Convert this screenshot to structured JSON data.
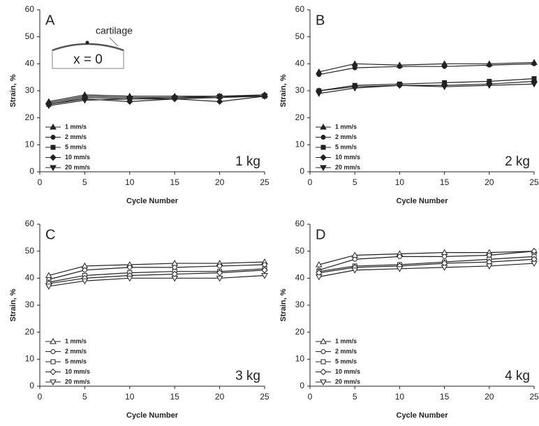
{
  "chart_data": [
    {
      "type": "line",
      "panel": "A",
      "load": "1 kg",
      "xlabel": "Cycle Number",
      "ylabel": "Strain, %",
      "x": [
        1,
        5,
        10,
        15,
        20,
        25
      ],
      "xlim": [
        0,
        25
      ],
      "xticks": [
        0,
        5,
        10,
        15,
        20,
        25
      ],
      "ylim": [
        0,
        60
      ],
      "yticks": [
        0,
        10,
        20,
        30,
        40,
        50,
        60
      ],
      "markers_filled": true,
      "color": "#222",
      "inset": {
        "label": "cartilage",
        "text": "x = 0"
      },
      "series": [
        {
          "name": "1 mm/s",
          "marker": "triangle-up",
          "values": [
            26,
            28.5,
            28,
            28,
            28,
            28.5
          ]
        },
        {
          "name": "2 mm/s",
          "marker": "circle",
          "values": [
            25.5,
            28,
            27.5,
            27.5,
            27.5,
            28.5
          ]
        },
        {
          "name": "5 mm/s",
          "marker": "square",
          "values": [
            25,
            27.5,
            27,
            27.5,
            28,
            28
          ]
        },
        {
          "name": "10 mm/s",
          "marker": "diamond",
          "values": [
            25,
            27,
            26,
            27,
            26,
            28
          ]
        },
        {
          "name": "20 mm/s",
          "marker": "triangle-down",
          "values": [
            24.5,
            26.5,
            27,
            27,
            27.5,
            28
          ]
        }
      ]
    },
    {
      "type": "line",
      "panel": "B",
      "load": "2 kg",
      "xlabel": "Cycle Number",
      "ylabel": "Strain, %",
      "x": [
        1,
        5,
        10,
        15,
        20,
        25
      ],
      "xlim": [
        0,
        25
      ],
      "xticks": [
        0,
        5,
        10,
        15,
        20,
        25
      ],
      "ylim": [
        0,
        60
      ],
      "yticks": [
        0,
        10,
        20,
        30,
        40,
        50,
        60
      ],
      "markers_filled": true,
      "color": "#222",
      "series": [
        {
          "name": "1 mm/s",
          "marker": "triangle-up",
          "values": [
            37,
            40,
            39.5,
            40,
            40,
            40.5
          ]
        },
        {
          "name": "2 mm/s",
          "marker": "circle",
          "values": [
            36,
            38.5,
            39,
            39,
            39.5,
            40
          ]
        },
        {
          "name": "5 mm/s",
          "marker": "square",
          "values": [
            30,
            32,
            32.5,
            33,
            33.5,
            34.5
          ]
        },
        {
          "name": "10 mm/s",
          "marker": "diamond",
          "values": [
            30,
            31.5,
            32,
            32,
            32.5,
            33.5
          ]
        },
        {
          "name": "20 mm/s",
          "marker": "triangle-down",
          "values": [
            29,
            31,
            32,
            31.5,
            32,
            32.5
          ]
        }
      ]
    },
    {
      "type": "line",
      "panel": "C",
      "load": "3 kg",
      "xlabel": "Cycle Number",
      "ylabel": "Strain, %",
      "x": [
        1,
        5,
        10,
        15,
        20,
        25
      ],
      "xlim": [
        0,
        25
      ],
      "xticks": [
        0,
        5,
        10,
        15,
        20,
        25
      ],
      "ylim": [
        0,
        60
      ],
      "yticks": [
        0,
        10,
        20,
        30,
        40,
        50,
        60
      ],
      "markers_filled": false,
      "color": "#222",
      "series": [
        {
          "name": "1 mm/s",
          "marker": "triangle-up",
          "values": [
            41,
            44.5,
            45,
            45.5,
            45.5,
            46
          ]
        },
        {
          "name": "2 mm/s",
          "marker": "circle",
          "values": [
            39.5,
            43,
            44,
            44,
            44.5,
            45
          ]
        },
        {
          "name": "5 mm/s",
          "marker": "square",
          "values": [
            38.5,
            41,
            42,
            42.5,
            42.5,
            43.5
          ]
        },
        {
          "name": "10 mm/s",
          "marker": "diamond",
          "values": [
            38,
            40,
            41,
            41.5,
            42,
            43
          ]
        },
        {
          "name": "20 mm/s",
          "marker": "triangle-down",
          "values": [
            37,
            39,
            40,
            40,
            40,
            41
          ]
        }
      ]
    },
    {
      "type": "line",
      "panel": "D",
      "load": "4 kg",
      "xlabel": "Cycle Number",
      "ylabel": "Strain, %",
      "x": [
        1,
        5,
        10,
        15,
        20,
        25
      ],
      "xlim": [
        0,
        25
      ],
      "xticks": [
        0,
        5,
        10,
        15,
        20,
        25
      ],
      "ylim": [
        0,
        60
      ],
      "yticks": [
        0,
        10,
        20,
        30,
        40,
        50,
        60
      ],
      "markers_filled": false,
      "color": "#222",
      "series": [
        {
          "name": "1 mm/s",
          "marker": "triangle-up",
          "values": [
            45,
            48.5,
            49,
            49.5,
            49.5,
            50
          ]
        },
        {
          "name": "2 mm/s",
          "marker": "circle",
          "values": [
            43,
            47,
            48,
            48,
            48.5,
            50
          ]
        },
        {
          "name": "5 mm/s",
          "marker": "square",
          "values": [
            42.5,
            44.5,
            45,
            46,
            47,
            48
          ]
        },
        {
          "name": "10 mm/s",
          "marker": "diamond",
          "values": [
            42,
            44,
            44.5,
            45.5,
            46,
            47
          ]
        },
        {
          "name": "20 mm/s",
          "marker": "triangle-down",
          "values": [
            40.5,
            43,
            43.5,
            44,
            44.5,
            45.5
          ]
        }
      ]
    }
  ]
}
